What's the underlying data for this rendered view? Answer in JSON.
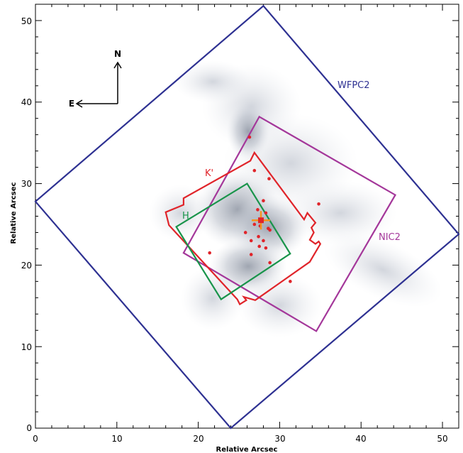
{
  "chart_data": {
    "type": "scatter",
    "xlabel": "Relative Arcsec",
    "ylabel": "Relative Arcsec",
    "xlim": [
      0,
      52
    ],
    "ylim": [
      0,
      52
    ],
    "xticks": [
      0,
      10,
      20,
      30,
      40,
      50
    ],
    "yticks": [
      0,
      10,
      20,
      30,
      40,
      50
    ],
    "compass": {
      "north": "N",
      "east": "E"
    },
    "footprints": [
      {
        "name": "WFPC2",
        "color": "#2e3192",
        "vertices": [
          [
            0,
            27.8
          ],
          [
            28,
            51.8
          ],
          [
            52,
            23.8
          ],
          [
            24,
            0
          ]
        ]
      },
      {
        "name": "NIC2",
        "color": "#a4379a",
        "vertices": [
          [
            27.5,
            38.2
          ],
          [
            44.2,
            28.6
          ],
          [
            34.5,
            11.9
          ],
          [
            18.2,
            21.5
          ]
        ]
      },
      {
        "name": "K'",
        "color": "#e0242a",
        "vertices": [
          [
            16.0,
            26.5
          ],
          [
            18.2,
            27.4
          ],
          [
            18.2,
            28.2
          ],
          [
            26.4,
            32.8
          ],
          [
            26.9,
            33.8
          ],
          [
            33.0,
            25.6
          ],
          [
            33.4,
            26.4
          ],
          [
            34.4,
            25.2
          ],
          [
            33.9,
            24.6
          ],
          [
            34.2,
            24.0
          ],
          [
            33.7,
            23.1
          ],
          [
            34.4,
            22.6
          ],
          [
            34.8,
            22.9
          ],
          [
            35.0,
            22.6
          ],
          [
            33.7,
            20.4
          ],
          [
            27.0,
            15.7
          ],
          [
            25.6,
            16.1
          ],
          [
            25.9,
            15.7
          ],
          [
            25.1,
            15.2
          ],
          [
            24.8,
            15.8
          ],
          [
            16.4,
            24.9
          ]
        ]
      },
      {
        "name": "H",
        "color": "#18944a",
        "vertices": [
          [
            17.3,
            24.7
          ],
          [
            26.0,
            30.0
          ],
          [
            31.3,
            21.4
          ],
          [
            22.8,
            15.8
          ]
        ]
      }
    ],
    "stars": {
      "color": "#e0242a",
      "points": [
        [
          26.3,
          35.7
        ],
        [
          26.9,
          31.6
        ],
        [
          28.0,
          27.9
        ],
        [
          28.7,
          30.6
        ],
        [
          34.8,
          27.5
        ],
        [
          27.3,
          26.8
        ],
        [
          28.3,
          26.4
        ],
        [
          26.9,
          25.0
        ],
        [
          27.6,
          24.8
        ],
        [
          28.6,
          24.5
        ],
        [
          28.8,
          24.3
        ],
        [
          25.8,
          24.0
        ],
        [
          26.5,
          23.0
        ],
        [
          27.4,
          23.5
        ],
        [
          28.0,
          23.0
        ],
        [
          27.5,
          22.3
        ],
        [
          28.3,
          22.1
        ],
        [
          26.5,
          21.3
        ],
        [
          21.4,
          21.5
        ],
        [
          28.8,
          20.3
        ],
        [
          31.3,
          18.0
        ]
      ]
    },
    "center_marker": {
      "color": "#f7941d",
      "x": 27.7,
      "y": 25.5
    },
    "grid": false,
    "legend": "none"
  }
}
